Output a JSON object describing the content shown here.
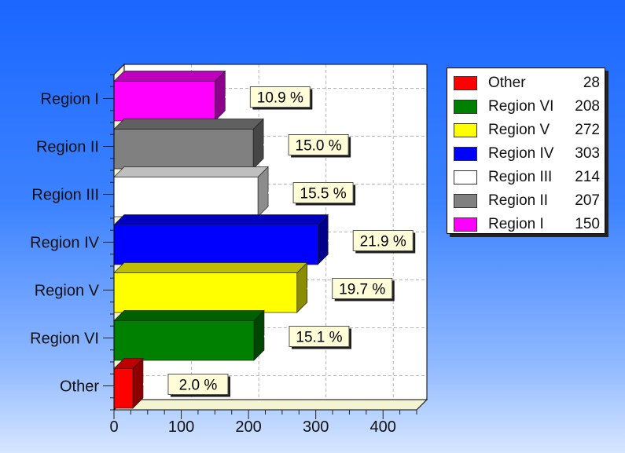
{
  "chart_data": {
    "type": "bar",
    "orientation": "horizontal",
    "categories": [
      "Region I",
      "Region II",
      "Region III",
      "Region IV",
      "Region V",
      "Region VI",
      "Other"
    ],
    "values": [
      150,
      207,
      214,
      303,
      272,
      208,
      28
    ],
    "labels": [
      "10.9 %",
      "15.0 %",
      "15.5 %",
      "21.9 %",
      "19.7 %",
      "15.1 %",
      "2.0 %"
    ],
    "colors": [
      "#ff00ff",
      "#808080",
      "#ffffff",
      "#0000ff",
      "#ffff00",
      "#008000",
      "#ff0000"
    ],
    "xlim": [
      0,
      450
    ],
    "xticks": [
      0,
      100,
      200,
      300,
      400
    ],
    "grid": true,
    "style": "3d",
    "legend_position": "top-right"
  },
  "legend": {
    "items": [
      {
        "name": "Other",
        "value": "28",
        "color": "#ff0000"
      },
      {
        "name": "Region VI",
        "value": "208",
        "color": "#008000"
      },
      {
        "name": "Region V",
        "value": "272",
        "color": "#ffff00"
      },
      {
        "name": "Region IV",
        "value": "303",
        "color": "#0000ff"
      },
      {
        "name": "Region III",
        "value": "214",
        "color": "#ffffff"
      },
      {
        "name": "Region II",
        "value": "207",
        "color": "#808080"
      },
      {
        "name": "Region I",
        "value": "150",
        "color": "#ff00ff"
      }
    ]
  }
}
